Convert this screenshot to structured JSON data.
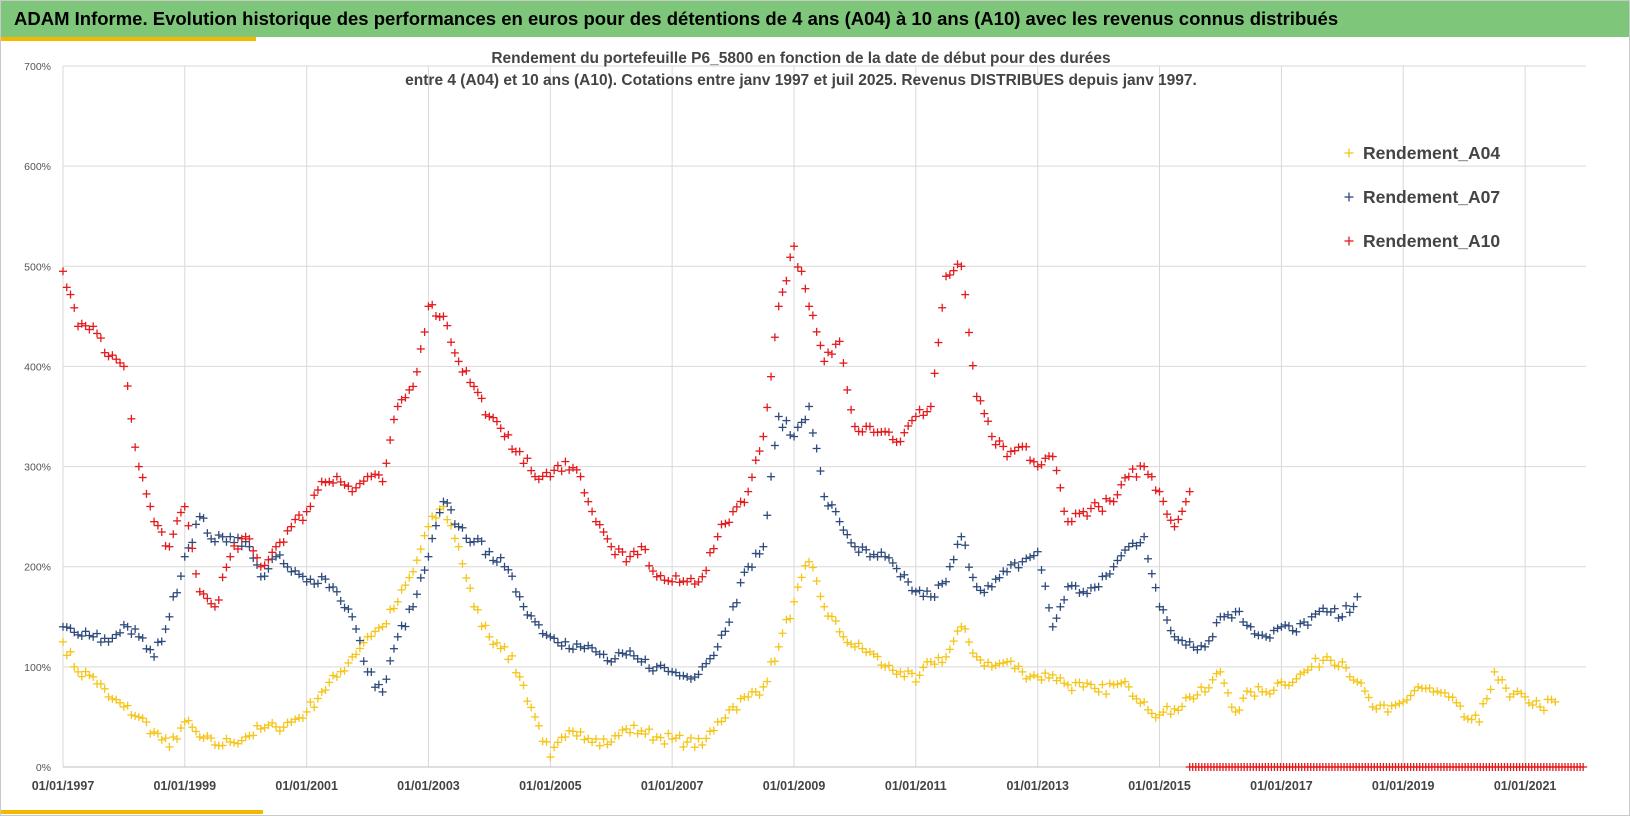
{
  "banner": {
    "title": "ADAM Informe. Evolution historique des performances en euros pour des détentions de 4 ans (A04) à 10 ans (A10) avec les revenus connus distribués"
  },
  "colors": {
    "banner_bg": "#7dc67a",
    "accent": "#f5b800",
    "A04": "#f5c518",
    "A07": "#2f4b7c",
    "A10": "#e41a1c"
  },
  "chart_data": {
    "type": "scatter",
    "title": "Rendement du portefeuille P6_5800 en fonction de la date de début pour des durées",
    "subtitle": "entre 4 (A04) et 10 ans (A10). Cotations  entre janv 1997 et juil 2025. Revenus DISTRIBUES depuis janv 1997.",
    "x_type": "date",
    "xlim": [
      "1997-01-01",
      "2022-01-01"
    ],
    "ylim": [
      0,
      7
    ],
    "y_ticks": [
      "0%",
      "100%",
      "200%",
      "300%",
      "400%",
      "500%",
      "600%",
      "700%"
    ],
    "x_ticks": [
      "01/01/1997",
      "01/01/1999",
      "01/01/2001",
      "01/01/2003",
      "01/01/2005",
      "01/01/2007",
      "01/01/2009",
      "01/01/2011",
      "01/01/2013",
      "01/01/2015",
      "01/01/2017",
      "01/01/2019",
      "01/01/2021"
    ],
    "grid": true,
    "legend_position": "top-right",
    "marker": "+",
    "series": [
      {
        "name": "Rendement_A04",
        "color": "#f5c518",
        "points": [
          [
            "1997-01-01",
            1.25
          ],
          [
            "1997-04-01",
            0.95
          ],
          [
            "1997-07-01",
            0.9
          ],
          [
            "1997-10-01",
            0.7
          ],
          [
            "1998-01-01",
            0.6
          ],
          [
            "1998-04-01",
            0.5
          ],
          [
            "1998-07-01",
            0.35
          ],
          [
            "1998-10-01",
            0.2
          ],
          [
            "1999-01-01",
            0.45
          ],
          [
            "1999-04-01",
            0.3
          ],
          [
            "1999-07-01",
            0.22
          ],
          [
            "1999-10-01",
            0.25
          ],
          [
            "2000-01-01",
            0.3
          ],
          [
            "2000-04-01",
            0.38
          ],
          [
            "2000-07-01",
            0.4
          ],
          [
            "2000-10-01",
            0.45
          ],
          [
            "2001-01-01",
            0.55
          ],
          [
            "2001-04-01",
            0.75
          ],
          [
            "2001-07-01",
            0.9
          ],
          [
            "2001-10-01",
            1.1
          ],
          [
            "2002-01-01",
            1.3
          ],
          [
            "2002-04-01",
            1.4
          ],
          [
            "2002-07-01",
            1.65
          ],
          [
            "2002-10-01",
            1.95
          ],
          [
            "2003-01-01",
            2.4
          ],
          [
            "2003-04-01",
            2.6
          ],
          [
            "2003-07-01",
            2.2
          ],
          [
            "2003-10-01",
            1.6
          ],
          [
            "2004-01-01",
            1.3
          ],
          [
            "2004-04-01",
            1.2
          ],
          [
            "2004-07-01",
            0.9
          ],
          [
            "2004-10-01",
            0.5
          ],
          [
            "2005-01-01",
            0.1
          ],
          [
            "2005-04-01",
            0.3
          ],
          [
            "2005-07-01",
            0.35
          ],
          [
            "2005-10-01",
            0.28
          ],
          [
            "2006-01-01",
            0.25
          ],
          [
            "2006-04-01",
            0.38
          ],
          [
            "2006-07-01",
            0.36
          ],
          [
            "2006-10-01",
            0.3
          ],
          [
            "2007-01-01",
            0.28
          ],
          [
            "2007-04-01",
            0.25
          ],
          [
            "2007-07-01",
            0.22
          ],
          [
            "2007-10-01",
            0.45
          ],
          [
            "2008-01-01",
            0.6
          ],
          [
            "2008-04-01",
            0.7
          ],
          [
            "2008-07-01",
            0.8
          ],
          [
            "2008-10-01",
            1.2
          ],
          [
            "2009-01-01",
            1.65
          ],
          [
            "2009-04-01",
            2.05
          ],
          [
            "2009-07-01",
            1.6
          ],
          [
            "2009-10-01",
            1.35
          ],
          [
            "2010-01-01",
            1.2
          ],
          [
            "2010-04-01",
            1.15
          ],
          [
            "2010-07-01",
            1.0
          ],
          [
            "2010-10-01",
            0.95
          ],
          [
            "2011-01-01",
            0.85
          ],
          [
            "2011-04-01",
            1.05
          ],
          [
            "2011-07-01",
            1.1
          ],
          [
            "2011-10-01",
            1.4
          ],
          [
            "2012-01-01",
            1.1
          ],
          [
            "2012-04-01",
            1.0
          ],
          [
            "2012-07-01",
            1.05
          ],
          [
            "2012-10-01",
            0.95
          ],
          [
            "2013-01-01",
            0.9
          ],
          [
            "2013-04-01",
            0.92
          ],
          [
            "2013-07-01",
            0.82
          ],
          [
            "2013-10-01",
            0.8
          ],
          [
            "2014-01-01",
            0.75
          ],
          [
            "2014-04-01",
            0.82
          ],
          [
            "2014-07-01",
            0.8
          ],
          [
            "2014-10-01",
            0.65
          ],
          [
            "2015-01-01",
            0.52
          ],
          [
            "2015-04-01",
            0.58
          ],
          [
            "2015-07-01",
            0.7
          ],
          [
            "2015-10-01",
            0.75
          ],
          [
            "2016-01-01",
            0.95
          ],
          [
            "2016-04-01",
            0.55
          ],
          [
            "2016-07-01",
            0.75
          ],
          [
            "2016-10-01",
            0.75
          ],
          [
            "2017-01-01",
            0.85
          ],
          [
            "2017-04-01",
            0.88
          ],
          [
            "2017-07-01",
            1.0
          ],
          [
            "2017-10-01",
            1.1
          ],
          [
            "2018-01-01",
            1.05
          ],
          [
            "2018-04-01",
            0.85
          ],
          [
            "2018-07-01",
            0.6
          ],
          [
            "2018-10-01",
            0.55
          ],
          [
            "2019-01-01",
            0.65
          ],
          [
            "2019-04-01",
            0.8
          ],
          [
            "2019-07-01",
            0.75
          ],
          [
            "2019-10-01",
            0.7
          ],
          [
            "2020-01-01",
            0.5
          ],
          [
            "2020-04-01",
            0.45
          ],
          [
            "2020-07-01",
            0.95
          ],
          [
            "2020-10-01",
            0.7
          ],
          [
            "2021-01-01",
            0.7
          ],
          [
            "2021-04-01",
            0.6
          ],
          [
            "2021-07-01",
            0.65
          ]
        ]
      },
      {
        "name": "Rendement_A07",
        "color": "#2f4b7c",
        "points": [
          [
            "1997-01-01",
            1.4
          ],
          [
            "1997-04-01",
            1.32
          ],
          [
            "1997-07-01",
            1.3
          ],
          [
            "1997-10-01",
            1.25
          ],
          [
            "1998-01-01",
            1.42
          ],
          [
            "1998-04-01",
            1.3
          ],
          [
            "1998-07-01",
            1.1
          ],
          [
            "1998-10-01",
            1.5
          ],
          [
            "1999-01-01",
            2.1
          ],
          [
            "1999-04-01",
            2.5
          ],
          [
            "1999-07-01",
            2.25
          ],
          [
            "1999-10-01",
            2.3
          ],
          [
            "2000-01-01",
            2.25
          ],
          [
            "2000-04-01",
            1.9
          ],
          [
            "2000-07-01",
            2.1
          ],
          [
            "2000-10-01",
            1.95
          ],
          [
            "2001-01-01",
            1.85
          ],
          [
            "2001-04-01",
            1.9
          ],
          [
            "2001-07-01",
            1.75
          ],
          [
            "2001-10-01",
            1.5
          ],
          [
            "2002-01-01",
            0.95
          ],
          [
            "2002-04-01",
            0.75
          ],
          [
            "2002-07-01",
            1.3
          ],
          [
            "2002-10-01",
            1.6
          ],
          [
            "2003-01-01",
            2.1
          ],
          [
            "2003-04-01",
            2.65
          ],
          [
            "2003-07-01",
            2.4
          ],
          [
            "2003-10-01",
            2.25
          ],
          [
            "2004-01-01",
            2.15
          ],
          [
            "2004-04-01",
            2.0
          ],
          [
            "2004-07-01",
            1.7
          ],
          [
            "2004-10-01",
            1.45
          ],
          [
            "2005-01-01",
            1.3
          ],
          [
            "2005-04-01",
            1.25
          ],
          [
            "2005-07-01",
            1.2
          ],
          [
            "2005-10-01",
            1.15
          ],
          [
            "2006-01-01",
            1.05
          ],
          [
            "2006-04-01",
            1.12
          ],
          [
            "2006-07-01",
            1.05
          ],
          [
            "2006-10-01",
            1.0
          ],
          [
            "2007-01-01",
            0.95
          ],
          [
            "2007-04-01",
            0.9
          ],
          [
            "2007-07-01",
            1.0
          ],
          [
            "2007-10-01",
            1.2
          ],
          [
            "2008-01-01",
            1.6
          ],
          [
            "2008-04-01",
            2.0
          ],
          [
            "2008-07-01",
            2.2
          ],
          [
            "2008-10-01",
            3.5
          ],
          [
            "2009-01-01",
            3.3
          ],
          [
            "2009-04-01",
            3.6
          ],
          [
            "2009-07-01",
            2.7
          ],
          [
            "2009-10-01",
            2.45
          ],
          [
            "2010-01-01",
            2.2
          ],
          [
            "2010-04-01",
            2.1
          ],
          [
            "2010-07-01",
            2.1
          ],
          [
            "2010-10-01",
            1.9
          ],
          [
            "2011-01-01",
            1.75
          ],
          [
            "2011-04-01",
            1.7
          ],
          [
            "2011-07-01",
            1.85
          ],
          [
            "2011-10-01",
            2.3
          ],
          [
            "2012-01-01",
            1.8
          ],
          [
            "2012-04-01",
            1.8
          ],
          [
            "2012-07-01",
            1.95
          ],
          [
            "2012-10-01",
            2.05
          ],
          [
            "2013-01-01",
            2.15
          ],
          [
            "2013-04-01",
            1.4
          ],
          [
            "2013-07-01",
            1.8
          ],
          [
            "2013-10-01",
            1.75
          ],
          [
            "2014-01-01",
            1.8
          ],
          [
            "2014-04-01",
            2.0
          ],
          [
            "2014-07-01",
            2.2
          ],
          [
            "2014-10-01",
            2.3
          ],
          [
            "2015-01-01",
            1.6
          ],
          [
            "2015-04-01",
            1.3
          ],
          [
            "2015-07-01",
            1.25
          ],
          [
            "2015-10-01",
            1.2
          ],
          [
            "2016-01-01",
            1.5
          ],
          [
            "2016-04-01",
            1.55
          ],
          [
            "2016-07-01",
            1.4
          ],
          [
            "2016-10-01",
            1.3
          ],
          [
            "2017-01-01",
            1.4
          ],
          [
            "2017-04-01",
            1.35
          ],
          [
            "2017-07-01",
            1.5
          ],
          [
            "2017-10-01",
            1.55
          ],
          [
            "2018-01-01",
            1.5
          ],
          [
            "2018-04-01",
            1.7
          ]
        ]
      },
      {
        "name": "Rendement_A10",
        "color": "#e41a1c",
        "points": [
          [
            "1997-01-01",
            4.95
          ],
          [
            "1997-04-01",
            4.4
          ],
          [
            "1997-07-01",
            4.4
          ],
          [
            "1997-10-01",
            4.1
          ],
          [
            "1998-01-01",
            4.0
          ],
          [
            "1998-04-01",
            3.0
          ],
          [
            "1998-07-01",
            2.45
          ],
          [
            "1998-10-01",
            2.2
          ],
          [
            "1999-01-01",
            2.6
          ],
          [
            "1999-04-01",
            1.75
          ],
          [
            "1999-07-01",
            1.6
          ],
          [
            "1999-10-01",
            2.1
          ],
          [
            "2000-01-01",
            2.3
          ],
          [
            "2000-04-01",
            2.0
          ],
          [
            "2000-07-01",
            2.2
          ],
          [
            "2000-10-01",
            2.4
          ],
          [
            "2001-01-01",
            2.55
          ],
          [
            "2001-04-01",
            2.85
          ],
          [
            "2001-07-01",
            2.9
          ],
          [
            "2001-10-01",
            2.75
          ],
          [
            "2002-01-01",
            2.9
          ],
          [
            "2002-04-01",
            2.85
          ],
          [
            "2002-07-01",
            3.6
          ],
          [
            "2002-10-01",
            3.8
          ],
          [
            "2003-01-01",
            4.6
          ],
          [
            "2003-04-01",
            4.5
          ],
          [
            "2003-07-01",
            4.05
          ],
          [
            "2003-10-01",
            3.8
          ],
          [
            "2004-01-01",
            3.5
          ],
          [
            "2004-04-01",
            3.3
          ],
          [
            "2004-07-01",
            3.15
          ],
          [
            "2004-10-01",
            2.9
          ],
          [
            "2005-01-01",
            2.9
          ],
          [
            "2005-04-01",
            3.05
          ],
          [
            "2005-07-01",
            2.9
          ],
          [
            "2005-10-01",
            2.45
          ],
          [
            "2006-01-01",
            2.2
          ],
          [
            "2006-04-01",
            2.05
          ],
          [
            "2006-07-01",
            2.2
          ],
          [
            "2006-10-01",
            1.9
          ],
          [
            "2007-01-01",
            1.85
          ],
          [
            "2007-04-01",
            1.85
          ],
          [
            "2007-07-01",
            1.9
          ],
          [
            "2007-10-01",
            2.3
          ],
          [
            "2008-01-01",
            2.55
          ],
          [
            "2008-04-01",
            2.75
          ],
          [
            "2008-07-01",
            3.3
          ],
          [
            "2008-10-01",
            4.6
          ],
          [
            "2009-01-01",
            5.2
          ],
          [
            "2009-04-01",
            4.6
          ],
          [
            "2009-07-01",
            4.05
          ],
          [
            "2009-10-01",
            4.25
          ],
          [
            "2010-01-01",
            3.4
          ],
          [
            "2010-04-01",
            3.4
          ],
          [
            "2010-07-01",
            3.35
          ],
          [
            "2010-10-01",
            3.25
          ],
          [
            "2011-01-01",
            3.5
          ],
          [
            "2011-04-01",
            3.6
          ],
          [
            "2011-07-01",
            4.9
          ],
          [
            "2011-10-01",
            5.0
          ],
          [
            "2012-01-01",
            3.7
          ],
          [
            "2012-04-01",
            3.3
          ],
          [
            "2012-07-01",
            3.1
          ],
          [
            "2012-10-01",
            3.2
          ],
          [
            "2013-01-01",
            3.0
          ],
          [
            "2013-04-01",
            3.1
          ],
          [
            "2013-07-01",
            2.45
          ],
          [
            "2013-10-01",
            2.55
          ],
          [
            "2014-01-01",
            2.6
          ],
          [
            "2014-04-01",
            2.65
          ],
          [
            "2014-07-01",
            2.9
          ],
          [
            "2014-10-01",
            3.0
          ],
          [
            "2015-01-01",
            2.75
          ],
          [
            "2015-04-01",
            2.4
          ],
          [
            "2015-07-01",
            2.75
          ]
        ]
      }
    ],
    "zero_series": {
      "color": "#e41a1c",
      "value": 0,
      "from": "2015-07-01",
      "to": "2021-12-15"
    }
  }
}
